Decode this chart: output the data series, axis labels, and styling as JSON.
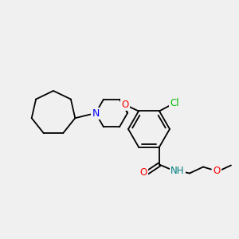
{
  "background_color": "#f0f0f0",
  "bond_color": "#000000",
  "atom_colors": {
    "N": "#0000ff",
    "O": "#ff0000",
    "Cl": "#00bb00",
    "NH": "#008080"
  },
  "figsize": [
    3.0,
    3.0
  ],
  "dpi": 100
}
